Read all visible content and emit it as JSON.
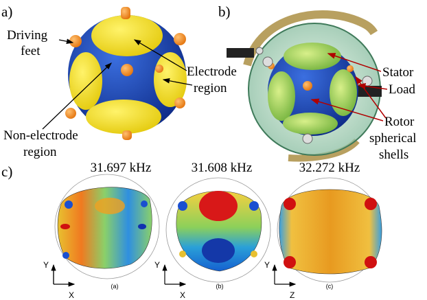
{
  "panels": {
    "a": {
      "label": "a)",
      "annotations": [
        {
          "lines": [
            "Driving",
            "feet"
          ]
        },
        {
          "lines": [
            "Electrode",
            "region"
          ]
        },
        {
          "lines": [
            "Non-electrode",
            "region"
          ]
        }
      ]
    },
    "b": {
      "label": "b)",
      "annotations": [
        {
          "lines": [
            "Stator"
          ]
        },
        {
          "lines": [
            "Load"
          ]
        },
        {
          "lines": [
            "Rotor",
            "spherical",
            "shells"
          ]
        }
      ]
    },
    "c": {
      "label": "c)",
      "modes": [
        {
          "frequency": "31.697 kHz",
          "caption": "(a)",
          "axes": [
            "Y",
            "X"
          ]
        },
        {
          "frequency": "31.608 kHz",
          "caption": "(b)",
          "axes": [
            "Y",
            "X"
          ]
        },
        {
          "frequency": "32.272 kHz",
          "caption": "(c)",
          "axes": [
            "Y",
            "Z"
          ]
        }
      ]
    }
  }
}
